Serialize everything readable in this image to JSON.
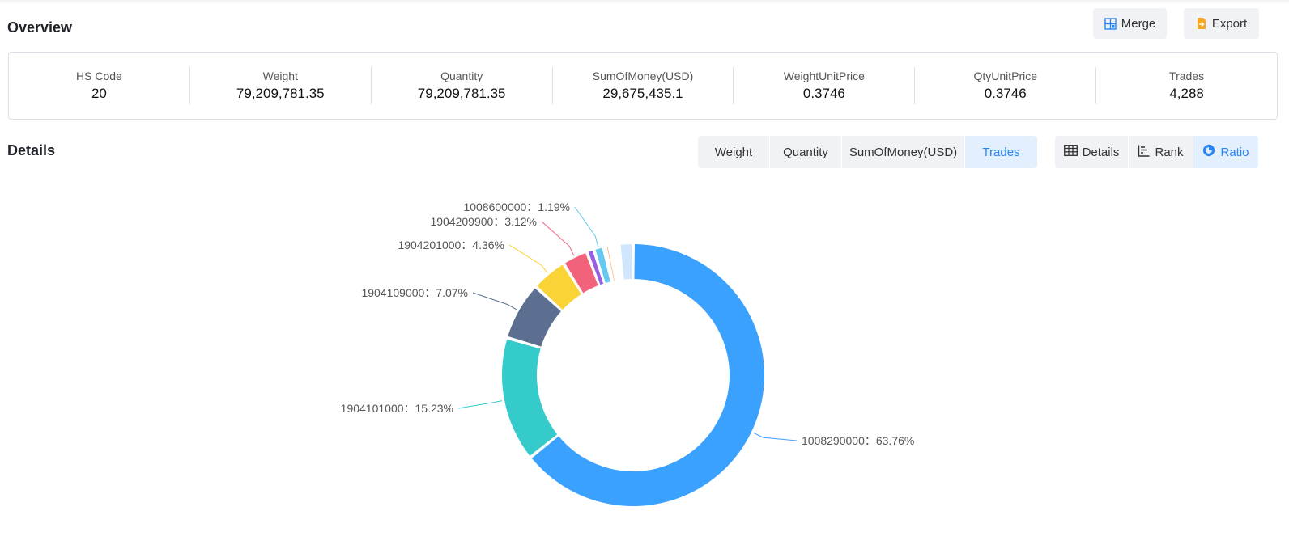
{
  "overview": {
    "title": "Overview",
    "merge_label": "Merge",
    "export_label": "Export",
    "stats": [
      {
        "label": "HS Code",
        "value": "20"
      },
      {
        "label": "Weight",
        "value": "79,209,781.35"
      },
      {
        "label": "Quantity",
        "value": "79,209,781.35"
      },
      {
        "label": "SumOfMoney(USD)",
        "value": "29,675,435.1"
      },
      {
        "label": "WeightUnitPrice",
        "value": "0.3746"
      },
      {
        "label": "QtyUnitPrice",
        "value": "0.3746"
      },
      {
        "label": "Trades",
        "value": "4,288"
      }
    ]
  },
  "details": {
    "title": "Details",
    "metric_tabs": [
      "Weight",
      "Quantity",
      "SumOfMoney(USD)",
      "Trades"
    ],
    "active_metric": "Trades",
    "view_tabs": [
      {
        "label": "Details",
        "icon": "table-icon"
      },
      {
        "label": "Rank",
        "icon": "rank-icon"
      },
      {
        "label": "Ratio",
        "icon": "ratio-icon"
      }
    ],
    "active_view": "Ratio"
  },
  "colors": {
    "accent": "#2c86ef",
    "active_tab_bg": "#e3effd"
  },
  "chart_data": {
    "type": "pie",
    "variant": "donut",
    "labels_shown": [
      {
        "name": "1008290000",
        "label": "1008290000：63.76%",
        "value": 63.76,
        "color": "#3ba1ff"
      },
      {
        "name": "1904101000",
        "label": "1904101000：15.23%",
        "value": 15.23,
        "color": "#36cbcb"
      },
      {
        "name": "1904109000",
        "label": "1904109000：7.07%",
        "value": 7.07,
        "color": "#5d6f91"
      },
      {
        "name": "1904201000",
        "label": "1904201000：4.36%",
        "value": 4.36,
        "color": "#fad337"
      },
      {
        "name": "1904209900",
        "label": "1904209900：3.12%",
        "value": 3.12,
        "color": "#f2637b"
      },
      {
        "name": "1008600000",
        "label": "1008600000：1.19%",
        "value": 1.19,
        "color": "#64c8ef"
      }
    ],
    "unlabeled_slices": [
      {
        "value": 0.9,
        "color": "#975fe4"
      },
      {
        "value": 0.25,
        "color": "#ffffff"
      },
      {
        "value": 0.45,
        "color": "#ff9f43"
      },
      {
        "value": 1.2,
        "color": "#ffffff"
      },
      {
        "value": 1.7,
        "color": "#cfe6fd"
      }
    ]
  }
}
